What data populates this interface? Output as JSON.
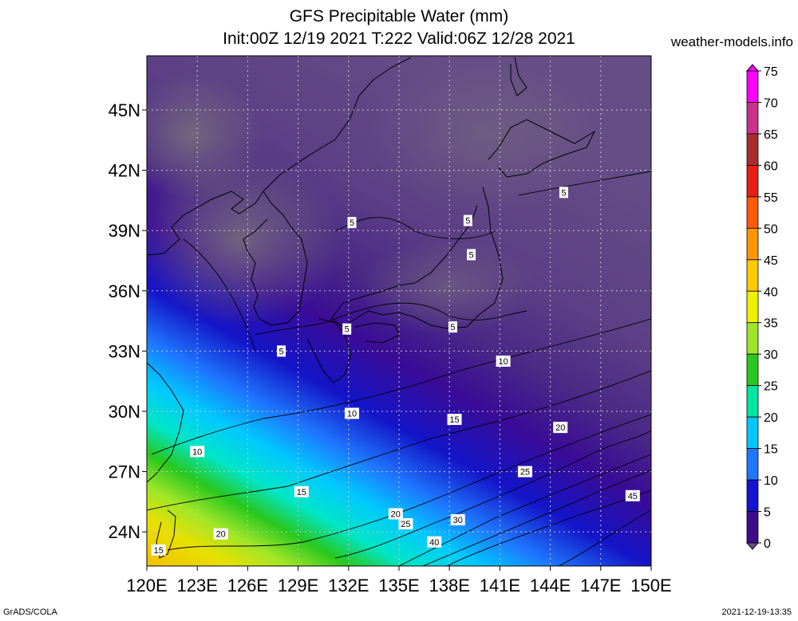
{
  "title_line1": "GFS Precipitable Water (mm)",
  "title_line2": "Init:00Z 12/19 2021 T:222 Valid:06Z 12/28 2021",
  "site": "weather-models.info",
  "footer_left": "GrADS/COLA",
  "footer_right": "2021-12-19-13:35",
  "map": {
    "lon_range": [
      120,
      150
    ],
    "lat_range": [
      22.3,
      47.7
    ],
    "lat_labels": [
      "45N",
      "42N",
      "39N",
      "36N",
      "33N",
      "30N",
      "27N",
      "24N"
    ],
    "lat_values": [
      45,
      42,
      39,
      36,
      33,
      30,
      27,
      24
    ],
    "lon_labels": [
      "120E",
      "123E",
      "126E",
      "129E",
      "132E",
      "135E",
      "138E",
      "141E",
      "144E",
      "147E",
      "150E"
    ],
    "lon_values": [
      120,
      123,
      126,
      129,
      132,
      135,
      138,
      141,
      144,
      147,
      150
    ],
    "contour_labels": [
      {
        "text": "5",
        "lon": 132.2,
        "lat": 39.4
      },
      {
        "text": "5",
        "lon": 139.1,
        "lat": 39.5
      },
      {
        "text": "5",
        "lon": 144.8,
        "lat": 40.9
      },
      {
        "text": "5",
        "lon": 139.3,
        "lat": 37.8
      },
      {
        "text": "5",
        "lon": 131.9,
        "lat": 34.1
      },
      {
        "text": "5",
        "lon": 128.0,
        "lat": 33.0
      },
      {
        "text": "5",
        "lon": 138.2,
        "lat": 34.2
      },
      {
        "text": "10",
        "lon": 141.2,
        "lat": 32.5
      },
      {
        "text": "10",
        "lon": 132.2,
        "lat": 29.9
      },
      {
        "text": "10",
        "lon": 123.0,
        "lat": 28.0
      },
      {
        "text": "15",
        "lon": 138.3,
        "lat": 29.6
      },
      {
        "text": "15",
        "lon": 129.2,
        "lat": 26.0
      },
      {
        "text": "15",
        "lon": 120.7,
        "lat": 23.1
      },
      {
        "text": "20",
        "lon": 144.6,
        "lat": 29.2
      },
      {
        "text": "20",
        "lon": 134.8,
        "lat": 24.9
      },
      {
        "text": "20",
        "lon": 124.4,
        "lat": 23.9
      },
      {
        "text": "25",
        "lon": 142.5,
        "lat": 27.0
      },
      {
        "text": "25",
        "lon": 135.4,
        "lat": 24.4
      },
      {
        "text": "30",
        "lon": 138.5,
        "lat": 24.6
      },
      {
        "text": "40",
        "lon": 137.1,
        "lat": 23.5
      },
      {
        "text": "45",
        "lon": 148.9,
        "lat": 25.8
      }
    ]
  },
  "colorbar": {
    "labels": [
      "75",
      "70",
      "65",
      "60",
      "55",
      "50",
      "45",
      "40",
      "35",
      "30",
      "25",
      "20",
      "15",
      "10",
      "5",
      "0"
    ],
    "colors": [
      "#ff00ff",
      "#c8328c",
      "#aa2d2d",
      "#e61e14",
      "#ff5a0a",
      "#ff9600",
      "#ffc800",
      "#f0f000",
      "#a0e628",
      "#28c81e",
      "#00e6a0",
      "#00c8ff",
      "#1e78ff",
      "#1414d2",
      "#3c0c8c",
      "#6e4e8c"
    ]
  }
}
